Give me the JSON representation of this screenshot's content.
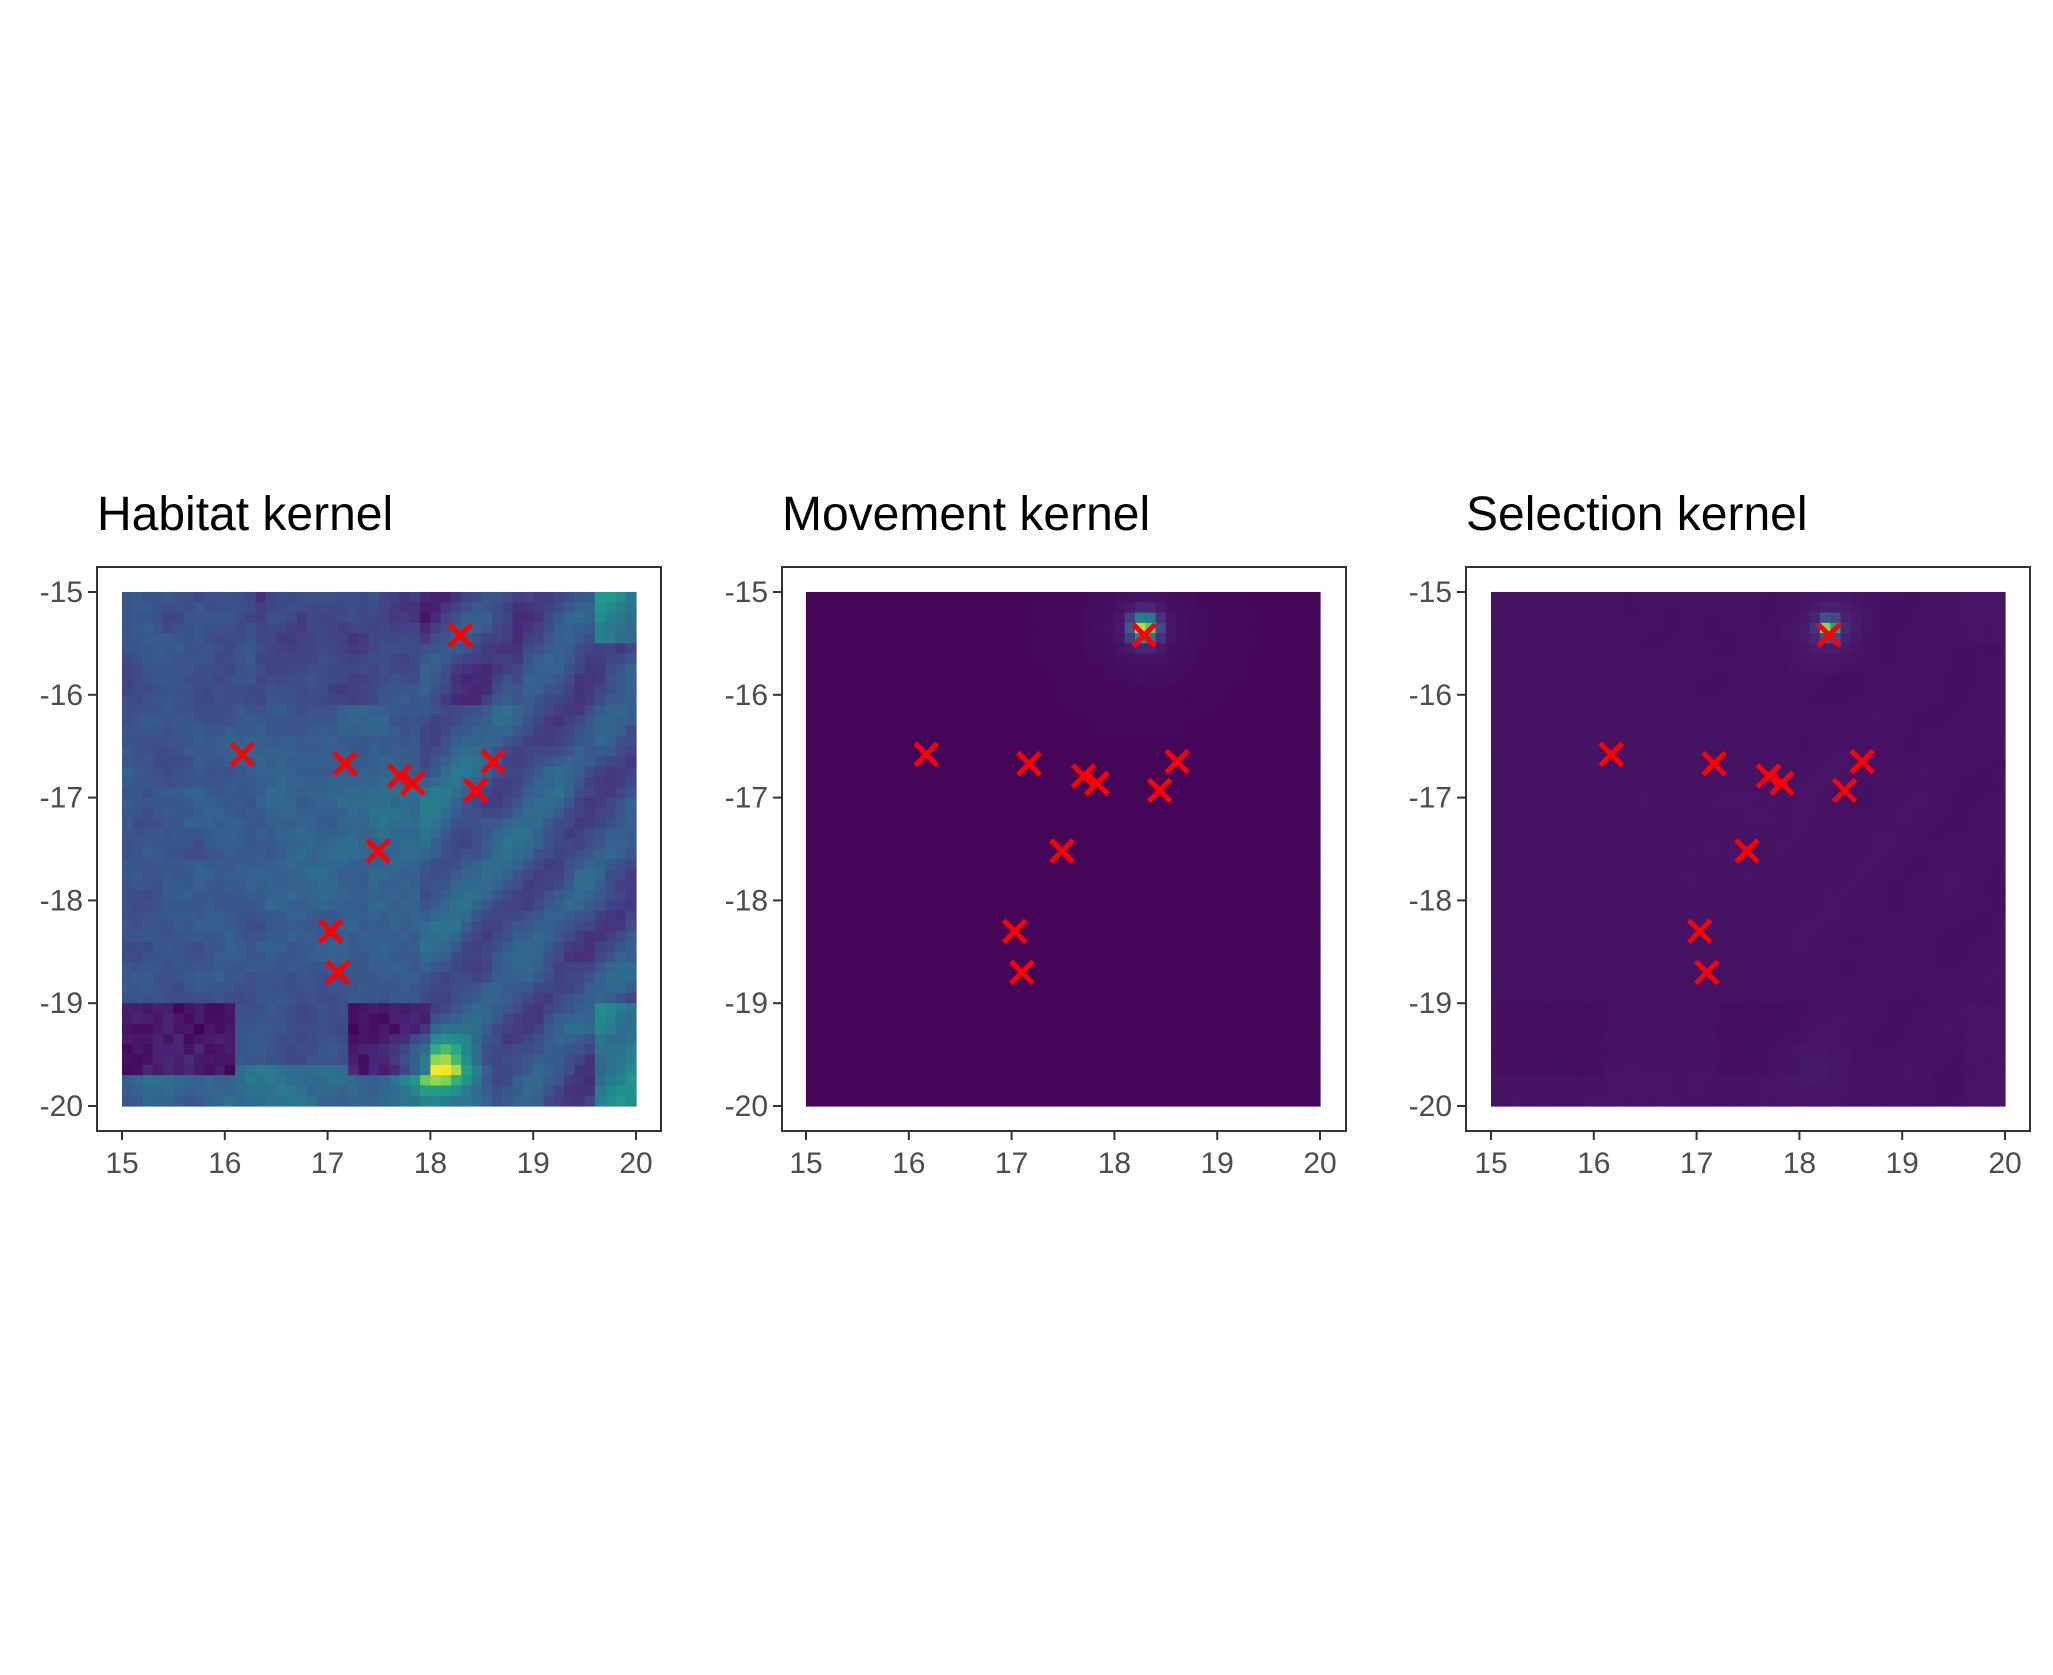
{
  "chart_data": [
    {
      "type": "heatmap",
      "title": "Habitat kernel",
      "xlabel": "",
      "ylabel": "",
      "xlim": [
        15,
        20
      ],
      "ylim": [
        -20,
        -15
      ],
      "xticks": [
        15,
        16,
        17,
        18,
        19,
        20
      ],
      "yticks": [
        -15,
        -16,
        -17,
        -18,
        -19,
        -20
      ],
      "grid": false,
      "legend": "none",
      "colormap": "viridis",
      "surface": "habitat",
      "points": [
        {
          "x": 16.17,
          "y": -16.58
        },
        {
          "x": 17.17,
          "y": -16.67
        },
        {
          "x": 17.7,
          "y": -16.79
        },
        {
          "x": 17.83,
          "y": -16.86
        },
        {
          "x": 18.29,
          "y": -15.42
        },
        {
          "x": 18.44,
          "y": -16.93
        },
        {
          "x": 18.61,
          "y": -16.65
        },
        {
          "x": 17.49,
          "y": -17.52
        },
        {
          "x": 17.03,
          "y": -18.3
        },
        {
          "x": 17.1,
          "y": -18.7
        }
      ],
      "marker": {
        "shape": "x",
        "color": "#ff0000"
      }
    },
    {
      "type": "heatmap",
      "title": "Movement kernel",
      "xlabel": "",
      "ylabel": "",
      "xlim": [
        15,
        20
      ],
      "ylim": [
        -20,
        -15
      ],
      "xticks": [
        15,
        16,
        17,
        18,
        19,
        20
      ],
      "yticks": [
        -15,
        -16,
        -17,
        -18,
        -19,
        -20
      ],
      "grid": false,
      "legend": "none",
      "colormap": "viridis",
      "surface": "movement",
      "peak": {
        "x": 18.29,
        "y": -15.35
      },
      "points": [
        {
          "x": 16.17,
          "y": -16.58
        },
        {
          "x": 17.17,
          "y": -16.67
        },
        {
          "x": 17.7,
          "y": -16.79
        },
        {
          "x": 17.83,
          "y": -16.86
        },
        {
          "x": 18.29,
          "y": -15.42
        },
        {
          "x": 18.44,
          "y": -16.93
        },
        {
          "x": 18.61,
          "y": -16.65
        },
        {
          "x": 17.49,
          "y": -17.52
        },
        {
          "x": 17.03,
          "y": -18.3
        },
        {
          "x": 17.1,
          "y": -18.7
        }
      ],
      "marker": {
        "shape": "x",
        "color": "#ff0000"
      }
    },
    {
      "type": "heatmap",
      "title": "Selection kernel",
      "xlabel": "",
      "ylabel": "",
      "xlim": [
        15,
        20
      ],
      "ylim": [
        -20,
        -15
      ],
      "xticks": [
        15,
        16,
        17,
        18,
        19,
        20
      ],
      "yticks": [
        -15,
        -16,
        -17,
        -18,
        -19,
        -20
      ],
      "grid": false,
      "legend": "none",
      "colormap": "viridis",
      "surface": "selection",
      "peak": {
        "x": 18.29,
        "y": -15.35
      },
      "points": [
        {
          "x": 16.17,
          "y": -16.58
        },
        {
          "x": 17.17,
          "y": -16.67
        },
        {
          "x": 17.7,
          "y": -16.79
        },
        {
          "x": 17.83,
          "y": -16.86
        },
        {
          "x": 18.29,
          "y": -15.42
        },
        {
          "x": 18.44,
          "y": -16.93
        },
        {
          "x": 18.61,
          "y": -16.65
        },
        {
          "x": 17.49,
          "y": -17.52
        },
        {
          "x": 17.03,
          "y": -18.3
        },
        {
          "x": 17.1,
          "y": -18.7
        }
      ],
      "marker": {
        "shape": "x",
        "color": "#ff0000"
      }
    }
  ]
}
